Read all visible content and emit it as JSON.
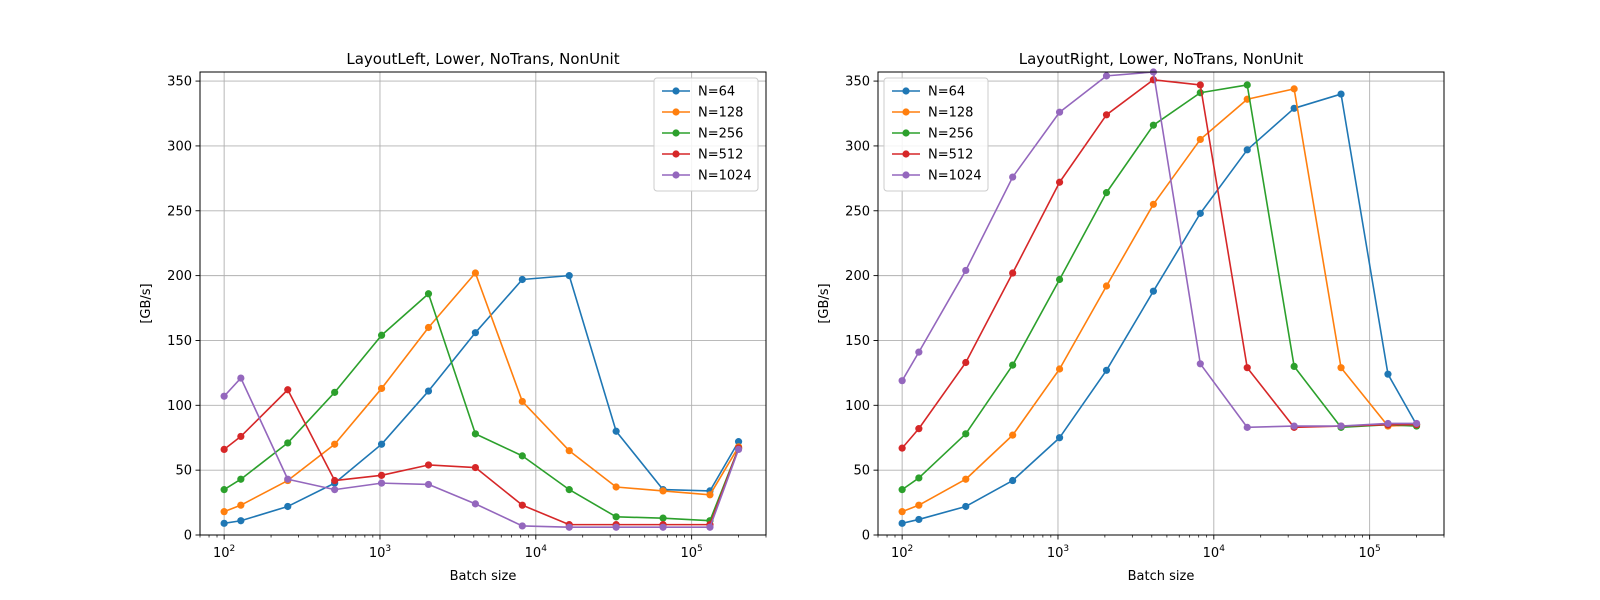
{
  "chart_data": [
    {
      "type": "line",
      "title": "LayoutLeft, Lower, NoTrans, NonUnit",
      "xlabel": "Batch size",
      "ylabel": "[GB/s]",
      "xscale": "log",
      "xlim": [
        70,
        300000
      ],
      "ylim": [
        0,
        357
      ],
      "xticks": [
        100,
        1000,
        10000,
        100000
      ],
      "xtick_labels": [
        "10^2",
        "10^3",
        "10^4",
        "10^5"
      ],
      "yticks": [
        0,
        50,
        100,
        150,
        200,
        250,
        300,
        350
      ],
      "grid": true,
      "legend": "upper right",
      "series": [
        {
          "name": "N=64",
          "color": "#1f77b4",
          "x": [
            100,
            128,
            256,
            512,
            1024,
            2048,
            4096,
            8192,
            16384,
            32768,
            65536,
            131072,
            200000
          ],
          "y": [
            9,
            11,
            22,
            40,
            70,
            111,
            156,
            197,
            200,
            80,
            35,
            34,
            72
          ]
        },
        {
          "name": "N=128",
          "color": "#ff7f0e",
          "x": [
            100,
            128,
            256,
            512,
            1024,
            2048,
            4096,
            8192,
            16384,
            32768,
            65536,
            131072,
            200000
          ],
          "y": [
            18,
            23,
            42,
            70,
            113,
            160,
            202,
            103,
            65,
            37,
            34,
            31,
            68
          ]
        },
        {
          "name": "N=256",
          "color": "#2ca02c",
          "x": [
            100,
            128,
            256,
            512,
            1024,
            2048,
            4096,
            8192,
            16384,
            32768,
            65536,
            131072,
            200000
          ],
          "y": [
            35,
            43,
            71,
            110,
            154,
            186,
            78,
            61,
            35,
            14,
            13,
            11,
            67
          ]
        },
        {
          "name": "N=512",
          "color": "#d62728",
          "x": [
            100,
            128,
            256,
            512,
            1024,
            2048,
            4096,
            8192,
            16384,
            32768,
            65536,
            131072,
            200000
          ],
          "y": [
            66,
            76,
            112,
            42,
            46,
            54,
            52,
            23,
            8,
            8,
            8,
            8,
            67
          ]
        },
        {
          "name": "N=1024",
          "color": "#9467bd",
          "x": [
            100,
            128,
            256,
            512,
            1024,
            2048,
            4096,
            8192,
            16384,
            32768,
            65536,
            131072,
            200000
          ],
          "y": [
            107,
            121,
            43,
            35,
            40,
            39,
            24,
            7,
            6,
            6,
            6,
            6,
            66
          ]
        }
      ]
    },
    {
      "type": "line",
      "title": "LayoutRight, Lower, NoTrans, NonUnit",
      "xlabel": "Batch size",
      "ylabel": "[GB/s]",
      "xscale": "log",
      "xlim": [
        70,
        300000
      ],
      "ylim": [
        0,
        357
      ],
      "xticks": [
        100,
        1000,
        10000,
        100000
      ],
      "xtick_labels": [
        "10^2",
        "10^3",
        "10^4",
        "10^5"
      ],
      "yticks": [
        0,
        50,
        100,
        150,
        200,
        250,
        300,
        350
      ],
      "grid": true,
      "legend": "upper left",
      "series": [
        {
          "name": "N=64",
          "color": "#1f77b4",
          "x": [
            100,
            128,
            256,
            512,
            1024,
            2048,
            4096,
            8192,
            16384,
            32768,
            65536,
            131072,
            200000
          ],
          "y": [
            9,
            12,
            22,
            42,
            75,
            127,
            188,
            248,
            297,
            329,
            340,
            124,
            85
          ]
        },
        {
          "name": "N=128",
          "color": "#ff7f0e",
          "x": [
            100,
            128,
            256,
            512,
            1024,
            2048,
            4096,
            8192,
            16384,
            32768,
            65536,
            131072,
            200000
          ],
          "y": [
            18,
            23,
            43,
            77,
            128,
            192,
            255,
            305,
            336,
            344,
            129,
            84,
            85
          ]
        },
        {
          "name": "N=256",
          "color": "#2ca02c",
          "x": [
            100,
            128,
            256,
            512,
            1024,
            2048,
            4096,
            8192,
            16384,
            32768,
            65536,
            131072,
            200000
          ],
          "y": [
            35,
            44,
            78,
            131,
            197,
            264,
            316,
            341,
            347,
            130,
            83,
            85,
            84
          ]
        },
        {
          "name": "N=512",
          "color": "#d62728",
          "x": [
            100,
            128,
            256,
            512,
            1024,
            2048,
            4096,
            8192,
            16384,
            32768,
            65536,
            131072,
            200000
          ],
          "y": [
            67,
            82,
            133,
            202,
            272,
            324,
            351,
            347,
            129,
            83,
            84,
            85,
            85
          ]
        },
        {
          "name": "N=1024",
          "color": "#9467bd",
          "x": [
            100,
            128,
            256,
            512,
            1024,
            2048,
            4096,
            8192,
            16384,
            32768,
            65536,
            131072,
            200000
          ],
          "y": [
            119,
            141,
            204,
            276,
            326,
            354,
            357,
            132,
            83,
            84,
            84,
            86,
            86
          ]
        }
      ]
    }
  ]
}
